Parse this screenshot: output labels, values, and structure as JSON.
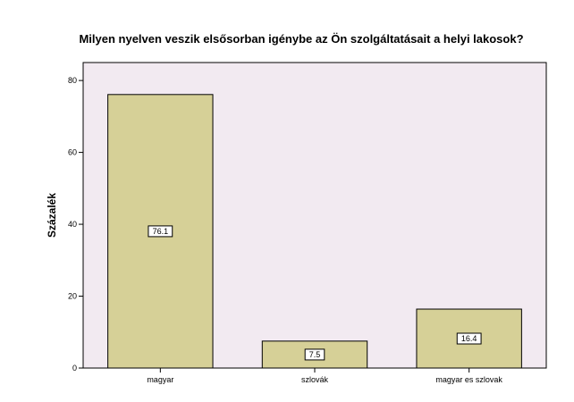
{
  "chart_data": {
    "type": "bar",
    "title": "Milyen nyelven veszik elsősorban igénybe az Ön szolgáltatásait a helyi lakosok?",
    "xlabel": "",
    "ylabel": "Százalék",
    "categories": [
      "magyar",
      "szlovák",
      "magyar es szlovak"
    ],
    "values": [
      76.1,
      7.5,
      16.4
    ],
    "data_labels": [
      "76.1",
      "7.5",
      "16.4"
    ],
    "ylim": [
      0,
      85
    ],
    "yticks": [
      0,
      20,
      40,
      60,
      80
    ],
    "ytick_labels": [
      "0",
      "20",
      "40",
      "60",
      "80"
    ],
    "grid": false,
    "legend": "none"
  },
  "colors": {
    "plot_background": "#f2eaf1",
    "bar_fill": "#d6d097",
    "bar_stroke": "#000000"
  }
}
